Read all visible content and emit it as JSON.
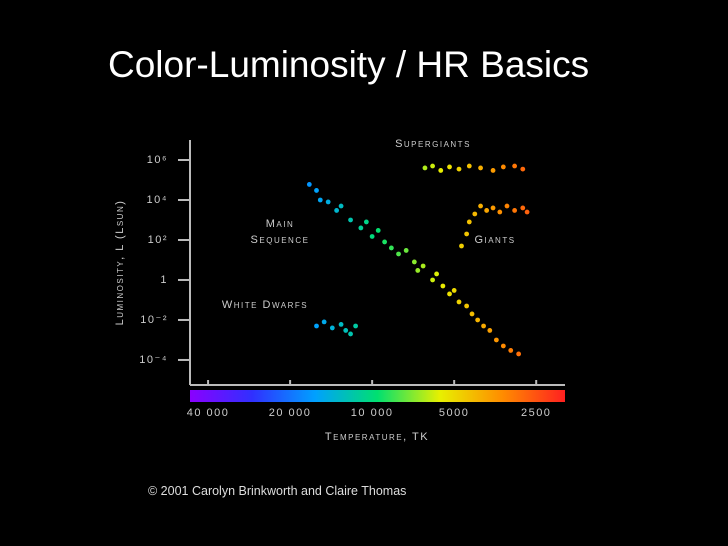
{
  "title": "Color-Luminosity / HR Basics",
  "caption": "© 2001 Carolyn Brinkworth and Claire Thomas",
  "chart_data": {
    "type": "scatter",
    "x_label": "Temperature, TK",
    "y_label": "Luminosity, L (Lsun)",
    "x_log": true,
    "y_log": true,
    "xlim": [
      46600,
      1960
    ],
    "ylim": [
      5.6e-06,
      10000000
    ],
    "xticks": [
      {
        "value": 40000,
        "label": "40 000"
      },
      {
        "value": 20000,
        "label": "20 000"
      },
      {
        "value": 10000,
        "label": "10 000"
      },
      5000,
      2500
    ],
    "yticks": [
      {
        "value": 1000000,
        "label": "10⁶"
      },
      {
        "value": 10000,
        "label": "10⁴"
      },
      {
        "value": 100,
        "label": "10²"
      },
      1,
      {
        "value": 0.01,
        "label": "10⁻²"
      },
      {
        "value": 0.0001,
        "label": "10⁻⁴"
      }
    ],
    "colorscale": [
      "#8a00ff",
      "#3030ff",
      "#00a0ff",
      "#00e070",
      "#e8f000",
      "#ff8c00",
      "#ff2020"
    ],
    "series": [
      {
        "name": "Main Sequence",
        "x": [
          17000,
          16000,
          15500,
          14500,
          13500,
          13000,
          12000,
          11000,
          10500,
          10000,
          9500,
          9000,
          8500,
          8000,
          7500,
          7000,
          6800,
          6500,
          6000,
          5800,
          5500,
          5200,
          5000,
          4800,
          4500,
          4300,
          4100,
          3900,
          3700,
          3500,
          3300,
          3100,
          2900
        ],
        "y": [
          60000,
          30000,
          10000,
          8000,
          3000,
          5000,
          1000,
          400,
          800,
          150,
          300,
          80,
          40,
          20,
          30,
          8,
          3,
          5,
          1,
          2,
          0.5,
          0.2,
          0.3,
          0.08,
          0.05,
          0.02,
          0.01,
          0.005,
          0.003,
          0.001,
          0.0005,
          0.0003,
          0.0002
        ]
      },
      {
        "name": "Supergiants",
        "x": [
          6400,
          6000,
          5600,
          5200,
          4800,
          4400,
          4000,
          3600,
          3300,
          3000,
          2800
        ],
        "y": [
          400000,
          500000,
          300000,
          450000,
          350000,
          500000,
          400000,
          300000,
          450000,
          500000,
          350000
        ]
      },
      {
        "name": "Giants",
        "x": [
          4700,
          4500,
          4400,
          4200,
          4000,
          3800,
          3600,
          3400,
          3200,
          3000,
          2800,
          2700
        ],
        "y": [
          50,
          200,
          800,
          2000,
          5000,
          3000,
          4000,
          2500,
          5000,
          3000,
          4000,
          2500
        ]
      },
      {
        "name": "White Dwarfs",
        "x": [
          16000,
          15000,
          14000,
          13000,
          12500,
          12000,
          11500
        ],
        "y": [
          0.005,
          0.008,
          0.004,
          0.006,
          0.003,
          0.002,
          0.005
        ]
      }
    ]
  }
}
